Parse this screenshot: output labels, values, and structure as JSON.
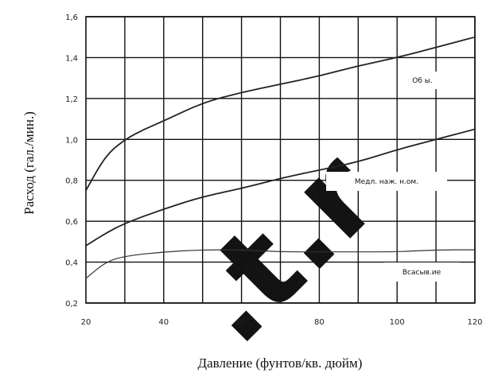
{
  "chart_data": {
    "type": "line",
    "xlabel": "Давление (фунтов/кв. дюйм)",
    "ylabel": "Расход (гал./мин.)",
    "xlim": [
      20,
      120
    ],
    "ylim": [
      0.2,
      1.6
    ],
    "xticks": [
      20,
      40,
      60,
      80,
      100,
      120
    ],
    "xtick_labels": [
      "20",
      "40",
      "60",
      "80",
      "100",
      "120"
    ],
    "xgrid": [
      30,
      40,
      50,
      60,
      70,
      80,
      90,
      100,
      110,
      120
    ],
    "yticks": [
      0.2,
      0.4,
      0.6,
      0.8,
      1.0,
      1.2,
      1.4,
      1.6
    ],
    "ytick_labels": [
      "0,2",
      "0,4",
      "0,6",
      "0,8",
      "1,0",
      "1,2",
      "1,4",
      "1,6"
    ],
    "grid": true,
    "series": [
      {
        "name": "Об ы.",
        "color": "#222222",
        "x": [
          20,
          25,
          30,
          35,
          40,
          50,
          60,
          70,
          80,
          90,
          100,
          110,
          120
        ],
        "y": [
          0.75,
          0.92,
          1.0,
          1.05,
          1.09,
          1.18,
          1.23,
          1.27,
          1.31,
          1.36,
          1.4,
          1.45,
          1.5
        ]
      },
      {
        "name": "Медл. наж. н.ом.",
        "color": "#222222",
        "x": [
          20,
          25,
          30,
          40,
          50,
          60,
          70,
          80,
          90,
          100,
          110,
          120
        ],
        "y": [
          0.48,
          0.54,
          0.59,
          0.66,
          0.72,
          0.76,
          0.81,
          0.85,
          0.89,
          0.95,
          1.0,
          1.05
        ]
      },
      {
        "name": "Всасыв.ие",
        "color": "#333333",
        "x": [
          20,
          25,
          30,
          40,
          50,
          60,
          70,
          80,
          90,
          100,
          110,
          120
        ],
        "y": [
          0.32,
          0.4,
          0.43,
          0.45,
          0.46,
          0.46,
          0.45,
          0.45,
          0.45,
          0.45,
          0.46,
          0.46
        ]
      }
    ]
  },
  "watermark": {
    "text": ".t.r"
  }
}
